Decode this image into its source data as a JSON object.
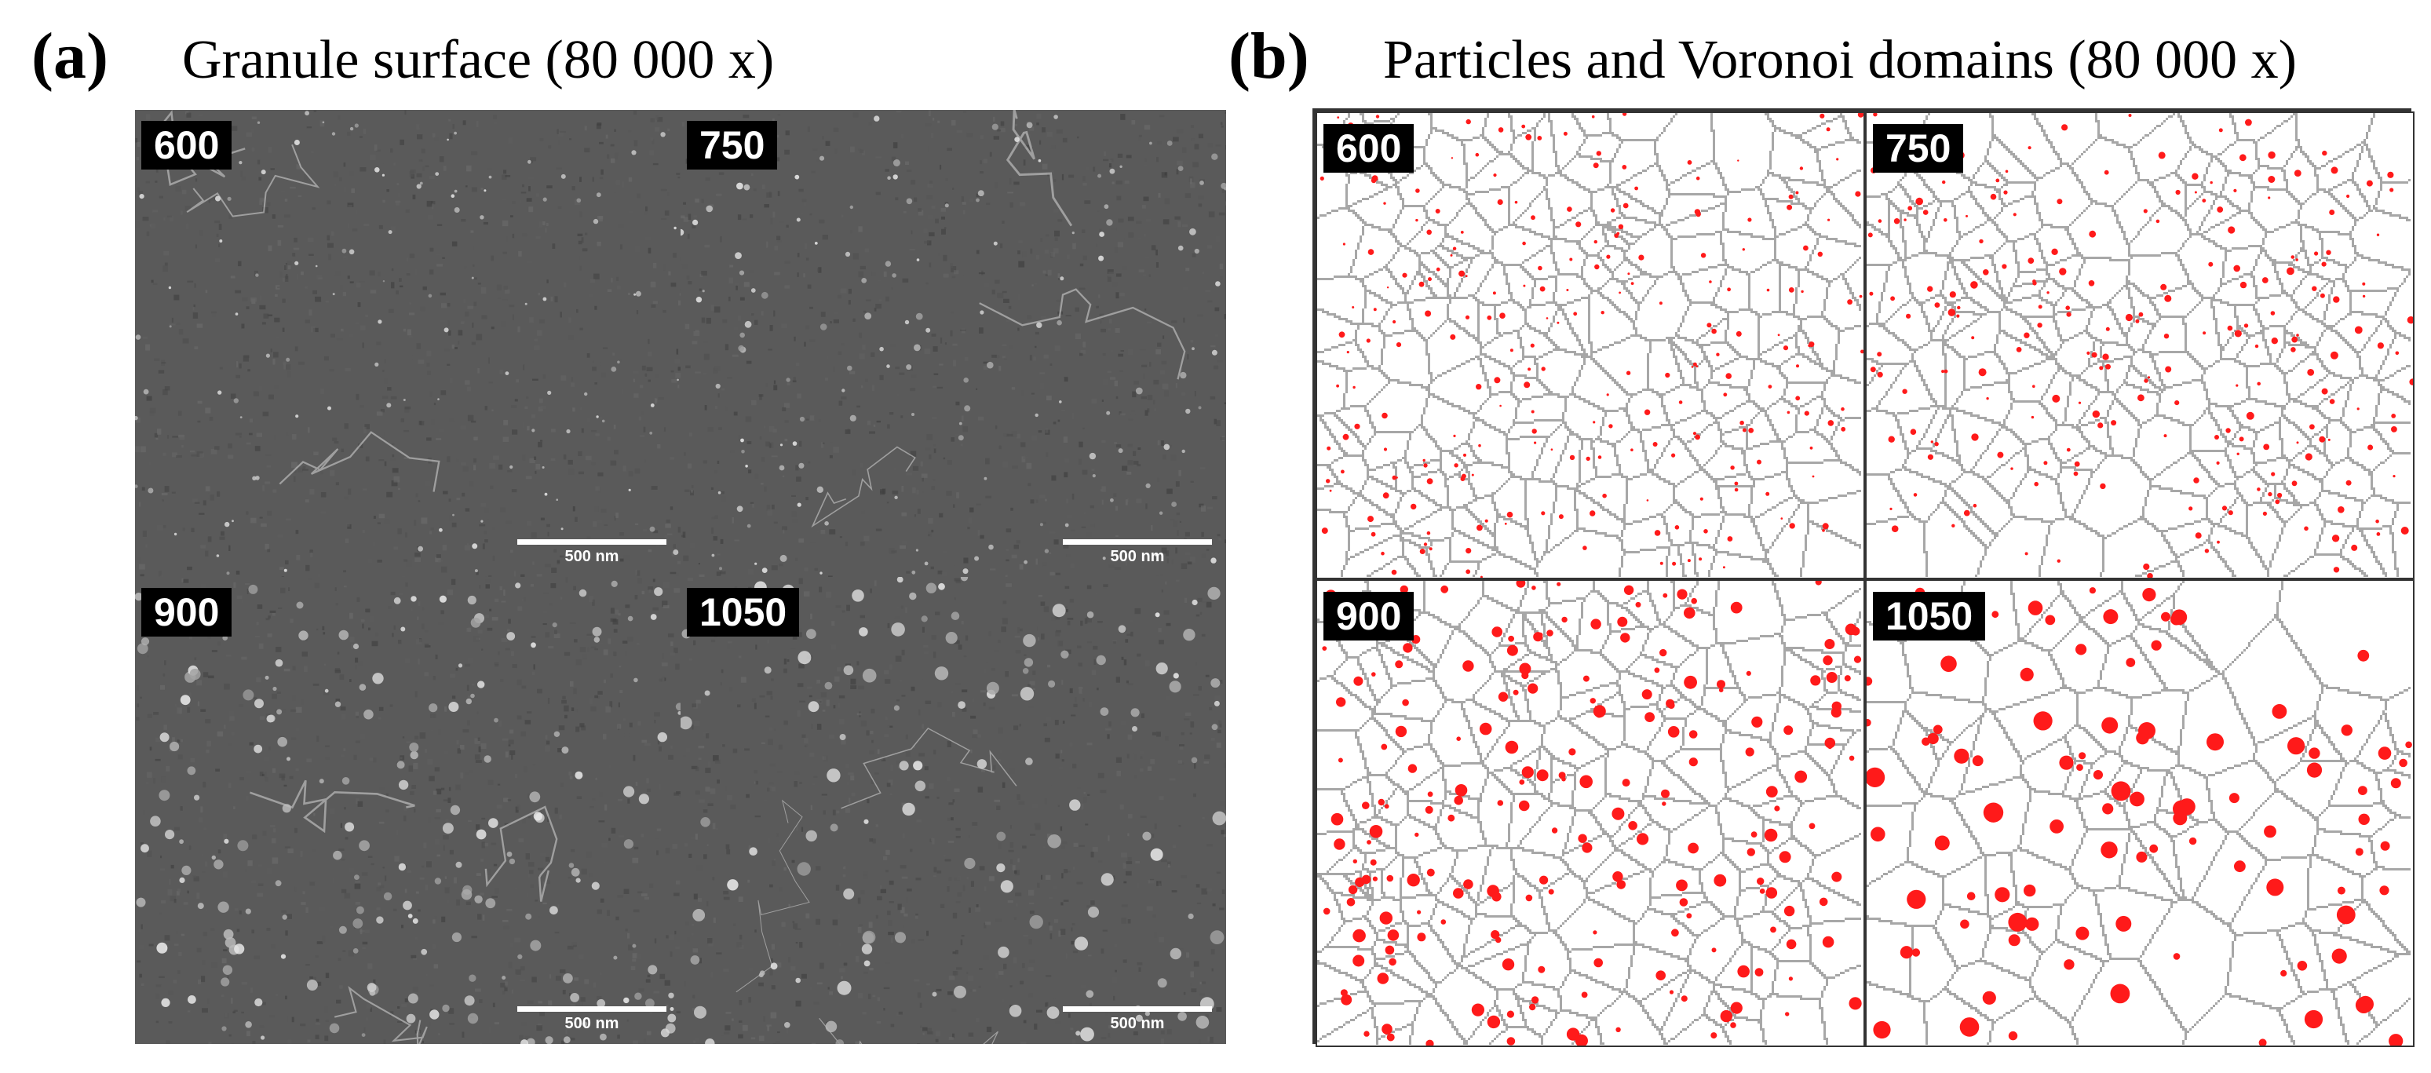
{
  "panel_a": {
    "letter": "(a)",
    "title": "Granule surface (80 000 x)",
    "images": [
      {
        "label": "600",
        "scale": "500 nm"
      },
      {
        "label": "750",
        "scale": "500 nm"
      },
      {
        "label": "900",
        "scale": "500 nm"
      },
      {
        "label": "1050",
        "scale": "500 nm"
      }
    ]
  },
  "panel_b": {
    "letter": "(b)",
    "title": "Particles and Voronoi domains (80 000 x)",
    "images": [
      {
        "label": "600"
      },
      {
        "label": "750"
      },
      {
        "label": "900"
      },
      {
        "label": "1050"
      }
    ]
  },
  "colors": {
    "particle": "#ff1a1a",
    "voronoi_edge": "#8a8a8a",
    "sem_dark": "#3a3a3a",
    "sem_mid": "#5a5a5a"
  }
}
